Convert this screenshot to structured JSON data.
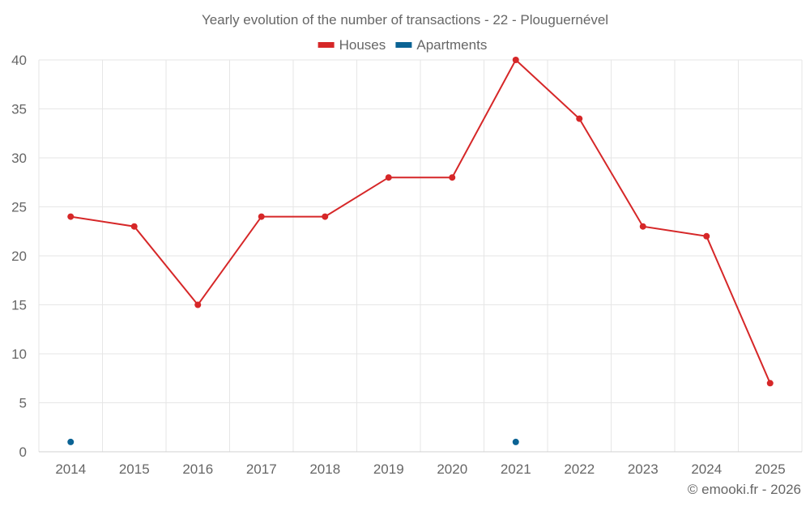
{
  "chart_data": {
    "type": "line",
    "title": "Yearly evolution of the number of transactions - 22 - Plouguernével",
    "categories": [
      "2014",
      "2015",
      "2016",
      "2017",
      "2018",
      "2019",
      "2020",
      "2021",
      "2022",
      "2023",
      "2024",
      "2025"
    ],
    "series": [
      {
        "name": "Houses",
        "color": "#d62728",
        "line": true,
        "values": [
          24,
          23,
          15,
          24,
          24,
          28,
          28,
          40,
          34,
          23,
          22,
          7
        ]
      },
      {
        "name": "Apartments",
        "color": "#0b6394",
        "line": false,
        "values": [
          1,
          null,
          null,
          null,
          null,
          null,
          null,
          1,
          null,
          null,
          null,
          null
        ]
      }
    ],
    "yticks": [
      0,
      5,
      10,
      15,
      20,
      25,
      30,
      35,
      40
    ],
    "ylim": [
      0,
      40
    ],
    "grid": true,
    "legend": "top-center",
    "xlabel": "",
    "ylabel": ""
  },
  "credit": "© emooki.fr - 2026"
}
